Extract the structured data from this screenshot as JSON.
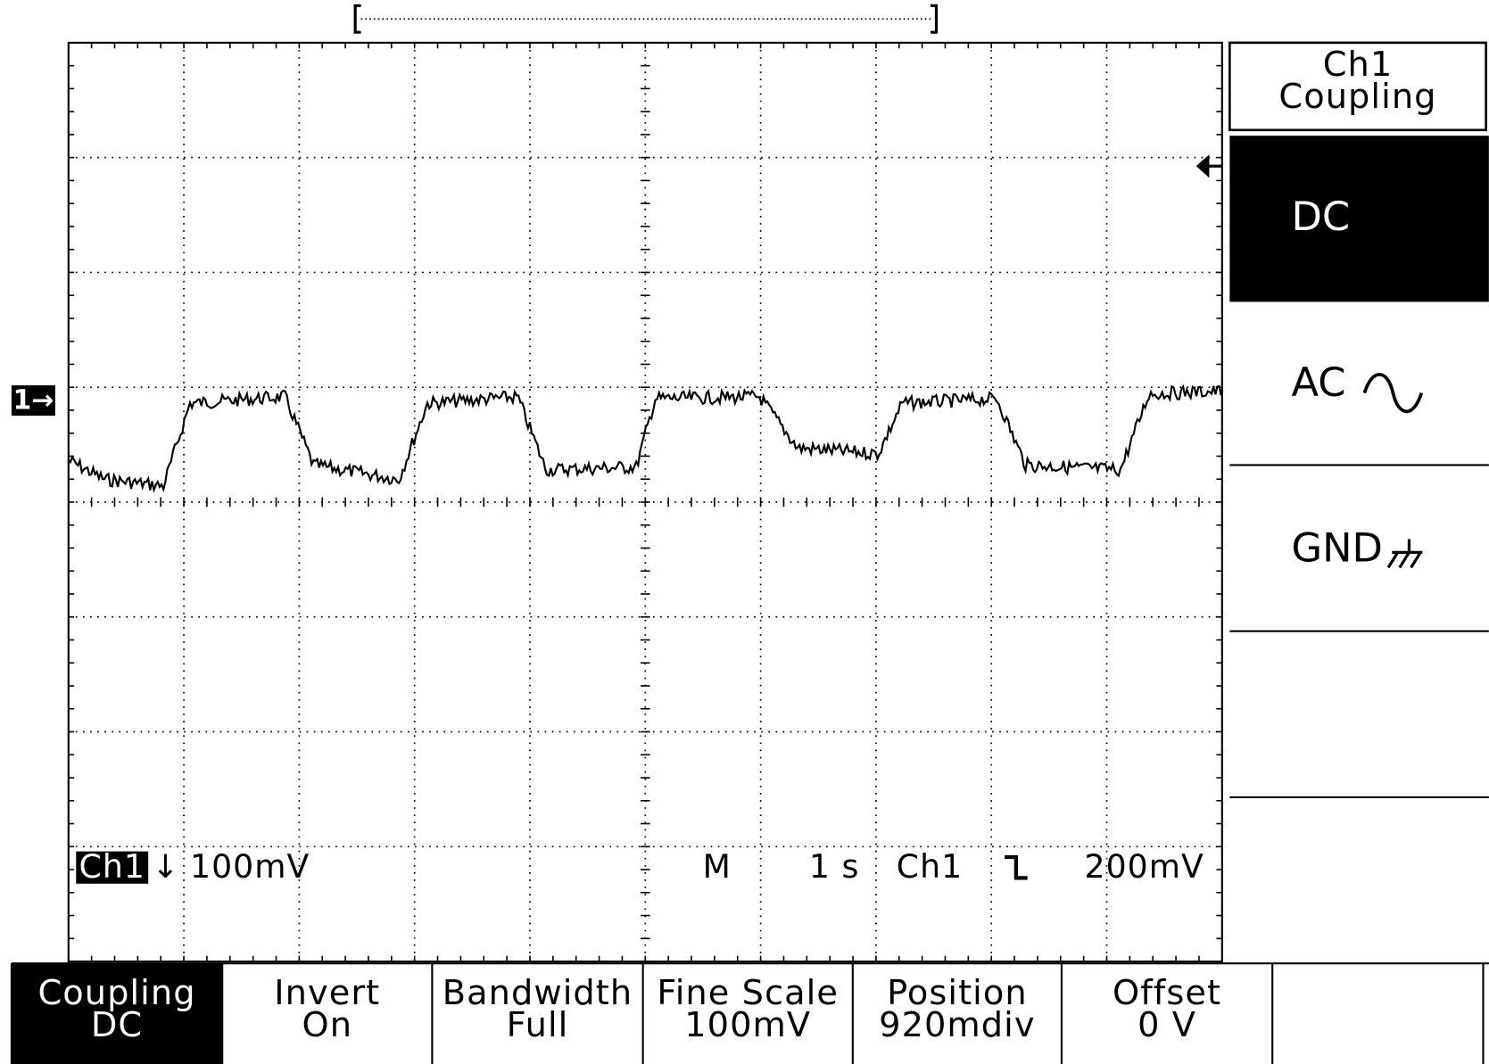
{
  "channel_marker": "1→",
  "status": {
    "channel": "Ch1",
    "direction": "↓",
    "scale": "100mV",
    "mode": "M",
    "timebase": "1 s",
    "trigger_source": "Ch1",
    "trigger_level": "200mV"
  },
  "side_menu": {
    "title_lines": [
      "Ch1",
      "Coupling"
    ],
    "options": [
      "DC",
      "AC",
      "GND"
    ]
  },
  "bottom_menu": [
    {
      "label": "Coupling",
      "value": "DC"
    },
    {
      "label": "Invert",
      "value": "On"
    },
    {
      "label": "Bandwidth",
      "value": "Full"
    },
    {
      "label": "Fine Scale",
      "value": "100mV"
    },
    {
      "label": "Position",
      "value": "920mdiv"
    },
    {
      "label": "Offset",
      "value": "0 V"
    }
  ]
}
